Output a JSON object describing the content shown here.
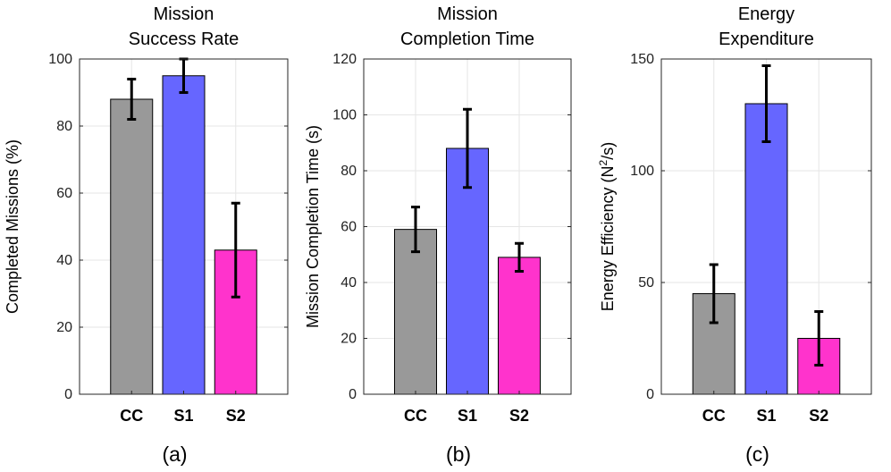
{
  "chart_data": [
    {
      "type": "bar",
      "title_lines": [
        "Mission",
        "Success Rate"
      ],
      "ylabel": "Completed Missions (%)",
      "ylabel_superscript": "",
      "ylabel_tail": "",
      "sublabel": "(a)",
      "categories": [
        "CC",
        "S1",
        "S2"
      ],
      "values": [
        88,
        95,
        43
      ],
      "errors_low": [
        82,
        90,
        29
      ],
      "errors_high": [
        94,
        100,
        57
      ],
      "ylim": [
        0,
        100
      ],
      "yticks": [
        0,
        20,
        40,
        60,
        80,
        100
      ],
      "ytick_labels": [
        "0",
        "20",
        "40",
        "60",
        "80",
        "100"
      ],
      "grid": true
    },
    {
      "type": "bar",
      "title_lines": [
        "Mission",
        "Completion Time"
      ],
      "ylabel": "Mission Completion Time (s)",
      "ylabel_superscript": "",
      "ylabel_tail": "",
      "sublabel": "(b)",
      "categories": [
        "CC",
        "S1",
        "S2"
      ],
      "values": [
        59,
        88,
        49
      ],
      "errors_low": [
        51,
        74,
        44
      ],
      "errors_high": [
        67,
        102,
        54
      ],
      "ylim": [
        0,
        120
      ],
      "yticks": [
        0,
        20,
        40,
        60,
        80,
        100,
        120
      ],
      "ytick_labels": [
        "0",
        "20",
        "40",
        "60",
        "80",
        "100",
        "120"
      ],
      "grid": true
    },
    {
      "type": "bar",
      "title_lines": [
        "Energy",
        "Expenditure"
      ],
      "ylabel": "Energy Efficiency (N",
      "ylabel_superscript": "2",
      "ylabel_tail": "/s)",
      "sublabel": "(c)",
      "categories": [
        "CC",
        "S1",
        "S2"
      ],
      "values": [
        45,
        130,
        25
      ],
      "errors_low": [
        32,
        113,
        13
      ],
      "errors_high": [
        58,
        147,
        37
      ],
      "ylim": [
        0,
        150
      ],
      "yticks": [
        0,
        50,
        100,
        150
      ],
      "ytick_labels": [
        "0",
        "50",
        "100",
        "150"
      ],
      "grid": true
    }
  ],
  "colors": {
    "CC": "#999999",
    "S1": "#6666ff",
    "S2": "#ff33cc",
    "axis": "#262626",
    "grid": "#e6e6e6",
    "errorbar": "#000000"
  }
}
